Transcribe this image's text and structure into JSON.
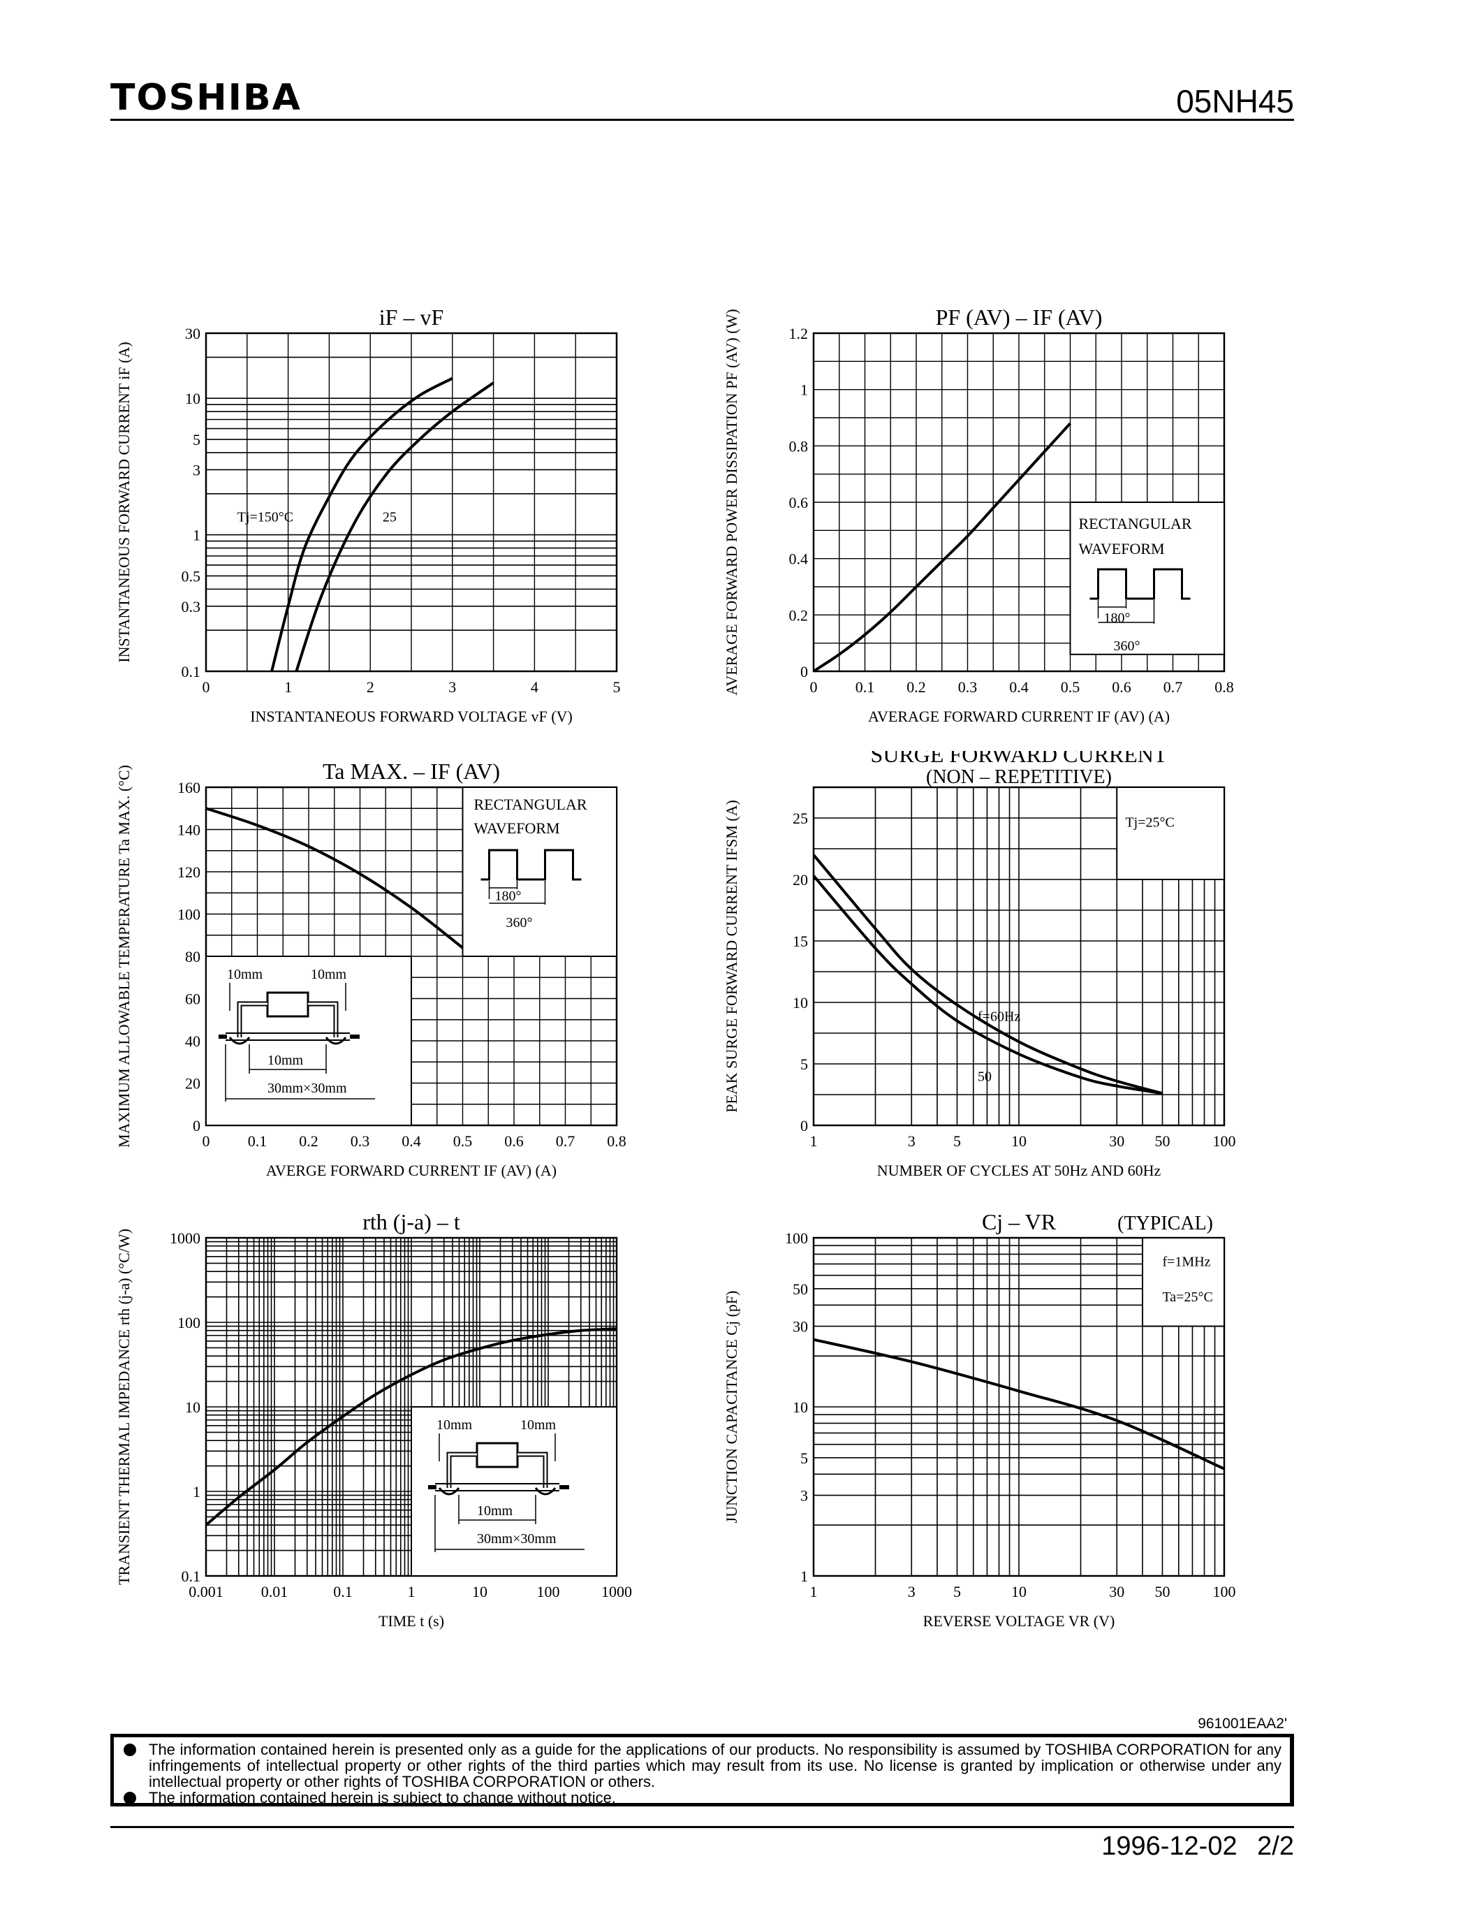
{
  "header": {
    "brand": "TOSHIBA",
    "part_number": "05NH45"
  },
  "footer": {
    "reference": "961001EAA2'",
    "notices": [
      "The information contained herein is presented only as a guide for the applications of our products. No responsibility is assumed by TOSHIBA CORPORATION for any infringements of intellectual property or other rights of the third parties which may result from its use. No license is granted by implication or otherwise under any intellectual property or other rights of TOSHIBA CORPORATION or others.",
      "The information contained herein is subject to change without notice."
    ],
    "date": "1996-12-02",
    "page": "2/2"
  },
  "chart_data": [
    {
      "id": "if_vf",
      "type": "line",
      "title": "iF – vF",
      "xlabel": "INSTANTANEOUS FORWARD VOLTAGE vF (V)",
      "ylabel": "INSTANTANEOUS FORWARD CURRENT iF (A)",
      "x_scale": "linear",
      "y_scale": "log",
      "grid": true,
      "xlim": [
        0,
        5
      ],
      "ylim": [
        0.1,
        30
      ],
      "x_ticks": [
        0,
        1,
        2,
        3,
        4,
        5
      ],
      "y_ticks": [
        0.1,
        0.3,
        0.5,
        1,
        3,
        5,
        10,
        30
      ],
      "series": [
        {
          "name": "Tj=150°C",
          "x": [
            0.8,
            1.0,
            1.2,
            1.5,
            1.8,
            2.2,
            2.6,
            3.0
          ],
          "y": [
            0.1,
            0.3,
            0.8,
            1.9,
            3.8,
            6.8,
            10.5,
            14
          ]
        },
        {
          "name": "25",
          "x": [
            1.1,
            1.4,
            1.8,
            2.2,
            2.6,
            3.0,
            3.5
          ],
          "y": [
            0.1,
            0.35,
            1.2,
            2.8,
            5.0,
            8.0,
            13
          ]
        }
      ],
      "annotations": [
        "Tj=150°C",
        "25"
      ]
    },
    {
      "id": "pf_if",
      "type": "line",
      "title": "PF (AV) – IF (AV)",
      "xlabel": "AVERAGE FORWARD CURRENT IF (AV) (A)",
      "ylabel": "AVERAGE FORWARD POWER DISSIPATION PF (AV) (W)",
      "x_scale": "linear",
      "y_scale": "linear",
      "grid": true,
      "xlim": [
        0,
        0.8
      ],
      "ylim": [
        0,
        1.2
      ],
      "x_ticks": [
        0,
        0.1,
        0.2,
        0.3,
        0.4,
        0.5,
        0.6,
        0.7,
        0.8
      ],
      "y_ticks": [
        0,
        0.2,
        0.4,
        0.6,
        0.8,
        1.0,
        1.2
      ],
      "series": [
        {
          "name": "",
          "x": [
            0,
            0.05,
            0.1,
            0.15,
            0.2,
            0.25,
            0.3,
            0.35,
            0.4,
            0.45,
            0.5
          ],
          "y": [
            0,
            0.06,
            0.13,
            0.21,
            0.3,
            0.39,
            0.48,
            0.58,
            0.68,
            0.78,
            0.88
          ]
        }
      ],
      "inset": {
        "lines": [
          "RECTANGULAR",
          "WAVEFORM"
        ],
        "labels": [
          "180°",
          "360°"
        ]
      }
    },
    {
      "id": "ta_if",
      "type": "line",
      "title": "Ta MAX. – IF (AV)",
      "xlabel": "AVERGE FORWARD CURRENT IF (AV) (A)",
      "ylabel": "MAXIMUM ALLOWABLE TEMPERATURE Ta MAX. (°C)",
      "x_scale": "linear",
      "y_scale": "linear",
      "grid": true,
      "xlim": [
        0,
        0.8
      ],
      "ylim": [
        0,
        160
      ],
      "x_ticks": [
        0,
        0.1,
        0.2,
        0.3,
        0.4,
        0.5,
        0.6,
        0.7,
        0.8
      ],
      "y_ticks": [
        0,
        20,
        40,
        60,
        80,
        100,
        120,
        140,
        160
      ],
      "series": [
        {
          "name": "",
          "x": [
            0,
            0.1,
            0.2,
            0.3,
            0.4,
            0.5
          ],
          "y": [
            150,
            142,
            132,
            119,
            103,
            84
          ]
        }
      ],
      "inset": {
        "lines": [
          "RECTANGULAR",
          "WAVEFORM"
        ],
        "labels": [
          "180°",
          "360°"
        ]
      },
      "mounting": {
        "labels": [
          "10mm",
          "10mm",
          "10mm",
          "30mm×30mm"
        ]
      }
    },
    {
      "id": "surge",
      "type": "line",
      "title": "SURGE FORWARD CURRENT",
      "subtitle": "(NON – REPETITIVE)",
      "xlabel": "NUMBER OF CYCLES AT 50Hz AND 60Hz",
      "ylabel": "PEAK SURGE FORWARD CURRENT IFSM (A)",
      "x_scale": "log",
      "y_scale": "linear",
      "grid": true,
      "xlim": [
        1,
        100
      ],
      "ylim": [
        0,
        27.5
      ],
      "x_ticks": [
        1,
        3,
        5,
        10,
        30,
        50,
        100
      ],
      "y_ticks": [
        0,
        5,
        10,
        15,
        20,
        25
      ],
      "series": [
        {
          "name": "f=60Hz",
          "x": [
            1,
            2,
            3,
            5,
            10,
            20,
            30,
            50
          ],
          "y": [
            22,
            16,
            12.7,
            9.8,
            6.8,
            4.6,
            3.6,
            2.6
          ]
        },
        {
          "name": "50",
          "x": [
            1,
            2,
            3,
            5,
            10,
            20,
            30,
            50
          ],
          "y": [
            20.3,
            14.4,
            11.5,
            8.5,
            5.8,
            3.9,
            3.2,
            2.6
          ]
        }
      ],
      "annotations": [
        "Tj=25°C",
        "f=60Hz",
        "50"
      ]
    },
    {
      "id": "rth_t",
      "type": "line",
      "title": "rth (j-a) – t",
      "xlabel": "TIME t (s)",
      "ylabel": "TRANSIENT THERMAL IMPEDANCE rth (j-a) (°C/W)",
      "x_scale": "log",
      "y_scale": "log",
      "grid": true,
      "xlim": [
        0.001,
        1000
      ],
      "ylim": [
        0.1,
        1000
      ],
      "x_ticks": [
        0.001,
        0.01,
        0.1,
        1,
        10,
        100,
        1000
      ],
      "y_ticks": [
        0.1,
        1,
        10,
        100,
        1000
      ],
      "series": [
        {
          "name": "",
          "x": [
            0.001,
            0.003,
            0.01,
            0.03,
            0.1,
            0.3,
            1,
            3,
            10,
            30,
            100,
            300,
            1000
          ],
          "y": [
            0.4,
            0.85,
            1.8,
            3.8,
            7.7,
            14,
            24,
            36,
            49,
            61,
            72,
            80,
            84
          ]
        }
      ],
      "mounting": {
        "labels": [
          "10mm",
          "10mm",
          "10mm",
          "30mm×30mm"
        ]
      }
    },
    {
      "id": "cj_vr",
      "type": "line",
      "title": "Cj – VR",
      "subtitle": "(TYPICAL)",
      "xlabel": "REVERSE VOLTAGE VR (V)",
      "ylabel": "JUNCTION CAPACITANCE Cj (pF)",
      "x_scale": "log",
      "y_scale": "log",
      "grid": true,
      "xlim": [
        1,
        100
      ],
      "ylim": [
        1,
        100
      ],
      "x_ticks": [
        1,
        3,
        5,
        10,
        30,
        50,
        100
      ],
      "y_ticks": [
        1,
        3,
        5,
        10,
        30,
        50,
        100
      ],
      "series": [
        {
          "name": "",
          "x": [
            1,
            3,
            10,
            30,
            100
          ],
          "y": [
            25,
            18.5,
            12.4,
            8.3,
            4.3
          ]
        }
      ],
      "annotations": [
        "f=1MHz",
        "Ta=25°C"
      ]
    }
  ]
}
